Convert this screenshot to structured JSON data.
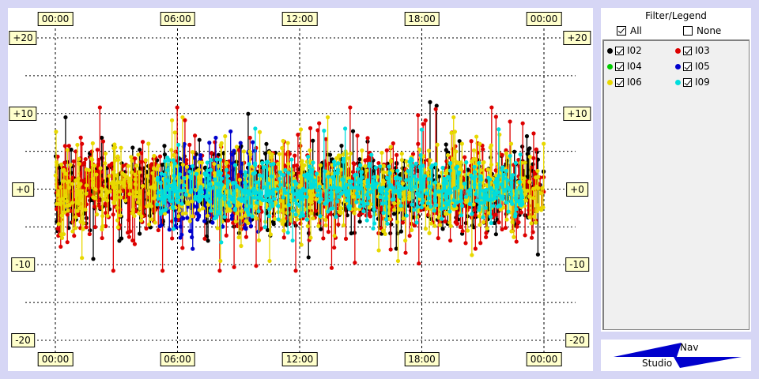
{
  "chart_data": {
    "type": "scatter",
    "x_ticks": [
      "00:00",
      "06:00",
      "12:00",
      "18:00",
      "00:00"
    ],
    "y_ticks": [
      "+20",
      "+10",
      "+0",
      "-10",
      "-20"
    ],
    "ylim": [
      -20,
      20
    ],
    "xlim_hours": [
      0,
      24
    ],
    "grid": true,
    "stem_baseline": 0,
    "series": [
      {
        "name": "I02",
        "color": "#000000",
        "spread": 2.6,
        "max_abs": 11.5,
        "active_hours": [
          0,
          24
        ]
      },
      {
        "name": "I03",
        "color": "#dd0000",
        "spread": 3.2,
        "max_abs": 10.8,
        "active_hours": [
          0,
          24
        ]
      },
      {
        "name": "I04",
        "color": "#00cc00",
        "spread": 0.0,
        "max_abs": 0.0,
        "active_hours": []
      },
      {
        "name": "I05",
        "color": "#0000cc",
        "spread": 3.0,
        "max_abs": 10.0,
        "active_hours": [
          5,
          10
        ]
      },
      {
        "name": "I06",
        "color": "#e8d800",
        "spread": 2.8,
        "max_abs": 9.5,
        "active_hours": [
          0,
          24
        ]
      },
      {
        "name": "I09",
        "color": "#00dddd",
        "spread": 2.0,
        "max_abs": 8.0,
        "active_hours": [
          5,
          23
        ]
      }
    ]
  },
  "legend": {
    "title": "Filter/Legend",
    "all_label": "All",
    "none_label": "None",
    "all_checked": true,
    "none_checked": false
  },
  "logo": {
    "nav_label": "Nav",
    "studio_label": "Studio",
    "color": "#0000cc"
  }
}
